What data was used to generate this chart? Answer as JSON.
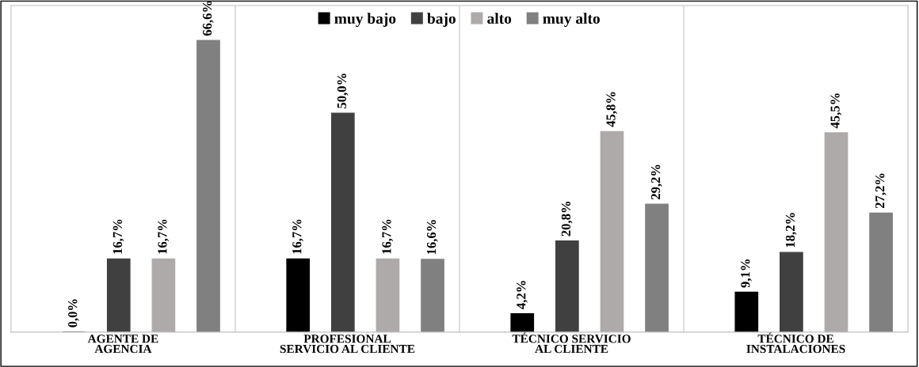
{
  "chart_data": {
    "type": "bar",
    "categories": [
      "AGENTE DE\nAGENCIA",
      "PROFESIONAL\nSERVICIO AL CLIENTE",
      "TÉCNICO SERVICIO\nAL CLIENTE",
      "TÉCNICO DE\nINSTALACIONES"
    ],
    "series": [
      {
        "name": "muy bajo",
        "color": "#000000",
        "values": [
          0.0,
          16.7,
          4.2,
          9.1
        ],
        "value_labels": [
          "0,0%",
          "16,7%",
          "4,2%",
          "9,1%"
        ]
      },
      {
        "name": "bajo",
        "color": "#404040",
        "values": [
          16.7,
          50.0,
          20.8,
          18.2
        ],
        "value_labels": [
          "16,7%",
          "50,0%",
          "20,8%",
          "18,2%"
        ]
      },
      {
        "name": "alto",
        "color": "#aeaaaa",
        "values": [
          16.7,
          16.7,
          45.8,
          45.5
        ],
        "value_labels": [
          "16,7%",
          "16,7%",
          "45,8%",
          "45,5%"
        ]
      },
      {
        "name": "muy alto",
        "color": "#808080",
        "values": [
          66.6,
          16.6,
          29.2,
          27.2
        ],
        "value_labels": [
          "66,6%",
          "16,6%",
          "29,2%",
          "27,2%"
        ]
      }
    ],
    "legend": "top",
    "grid": false
  }
}
